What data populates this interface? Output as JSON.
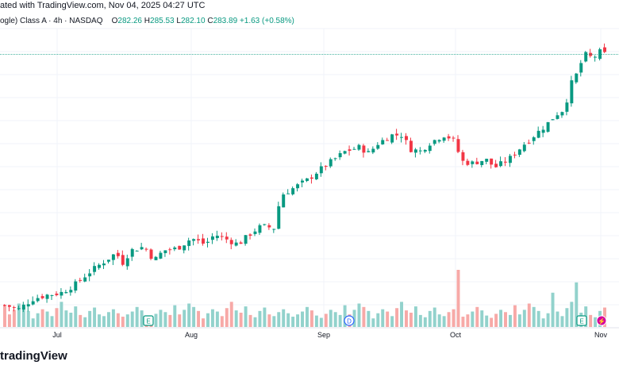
{
  "header": {
    "published": "ated with TradingView.com, Nov 04, 2025 04:27 UTC",
    "symbol": "ogle) Class A · 4h · NASDAQ",
    "open_label": "O",
    "open": "282.26",
    "high_label": "H",
    "high": "285.53",
    "low_label": "L",
    "low": "282.10",
    "close_label": "C",
    "close": "283.89",
    "change": "+1.63 (+0.58%)"
  },
  "chart_data": {
    "type": "candlestick",
    "price_range": [
      150,
      295
    ],
    "volume_scale": [
      0,
      100
    ],
    "current_price": 283.89,
    "x_ticks": [
      "Jul",
      "Aug",
      "Sep",
      "Oct",
      "Nov"
    ],
    "events": [
      {
        "label": "E",
        "kind": "earnings",
        "near": "Jul"
      },
      {
        "label": "D",
        "kind": "dividend",
        "near": "Sep"
      },
      {
        "label": "E",
        "kind": "earnings",
        "near": "Nov"
      },
      {
        "label": "⚡",
        "kind": "split-or-event",
        "near": "Nov"
      }
    ],
    "up_color": "#089981",
    "down_color": "#f23645",
    "volume_up_color": "#92d2cc",
    "volume_down_color": "#f7a9a7",
    "price_path": [
      [
        0,
        160
      ],
      [
        6,
        158
      ],
      [
        12,
        163
      ],
      [
        18,
        165
      ],
      [
        24,
        166
      ],
      [
        30,
        170
      ],
      [
        36,
        176
      ],
      [
        42,
        181
      ],
      [
        48,
        186
      ],
      [
        50,
        180
      ],
      [
        54,
        187
      ],
      [
        60,
        189
      ],
      [
        64,
        182
      ],
      [
        68,
        187
      ],
      [
        74,
        188
      ],
      [
        80,
        193
      ],
      [
        86,
        190
      ],
      [
        90,
        195
      ],
      [
        96,
        192
      ],
      [
        100,
        190
      ],
      [
        106,
        196
      ],
      [
        110,
        199
      ],
      [
        116,
        198
      ],
      [
        118,
        214
      ],
      [
        124,
        218
      ],
      [
        130,
        222
      ],
      [
        134,
        226
      ],
      [
        140,
        231
      ],
      [
        146,
        236
      ],
      [
        152,
        238
      ],
      [
        156,
        235
      ],
      [
        160,
        240
      ],
      [
        166,
        244
      ],
      [
        170,
        244
      ],
      [
        174,
        237
      ],
      [
        178,
        236
      ],
      [
        182,
        240
      ],
      [
        188,
        244
      ],
      [
        192,
        242
      ],
      [
        196,
        231
      ],
      [
        200,
        230
      ],
      [
        206,
        232
      ],
      [
        210,
        228
      ],
      [
        216,
        232
      ],
      [
        222,
        239
      ],
      [
        228,
        245
      ],
      [
        232,
        249
      ],
      [
        236,
        254
      ],
      [
        240,
        257
      ],
      [
        242,
        268
      ],
      [
        246,
        276
      ],
      [
        248,
        284
      ],
      [
        252,
        282
      ],
      [
        255,
        285
      ],
      [
        257,
        284
      ]
    ],
    "volume_pattern": [
      38,
      22,
      30,
      41,
      35,
      28,
      15,
      24,
      31,
      27,
      19,
      33,
      44,
      29,
      25,
      36,
      21,
      17,
      28,
      34,
      22,
      19,
      26,
      31,
      24,
      18,
      22,
      27,
      35,
      29,
      20,
      16,
      23,
      30,
      26,
      21
    ]
  },
  "footer": {
    "brand": "tradingView"
  }
}
